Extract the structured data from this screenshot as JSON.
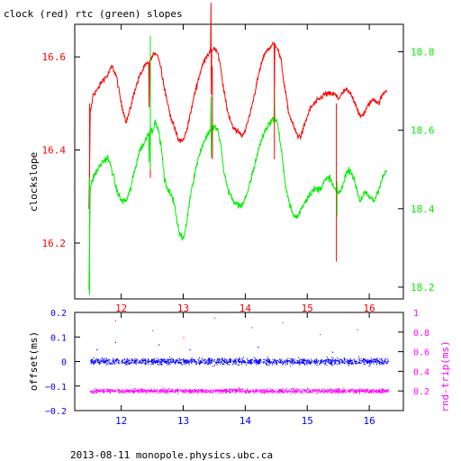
{
  "title": "clock (red) rtc (green) slopes",
  "footer": "2013-08-11 monopole.physics.ubc.ca",
  "colors": {
    "clock": "#ff0000",
    "rtc": "#00ee00",
    "offset": "#0000ff",
    "roundtrip": "#ff00ff",
    "axis": "#000000",
    "background": "#ffffff"
  },
  "chart_data": [
    {
      "type": "line",
      "title": "clock (red) rtc (green) slopes",
      "ylabel": "clockslope",
      "y2label": "",
      "xlim": [
        11.25,
        16.55
      ],
      "ylim": [
        16.08,
        16.67
      ],
      "y2lim": [
        18.17,
        18.87
      ],
      "x_ticks": [
        12,
        13,
        14,
        15,
        16
      ],
      "x_tick_labels": [
        "12",
        "13",
        "14",
        "15",
        "16"
      ],
      "y_ticks": [
        16.2,
        16.4,
        16.6
      ],
      "y_tick_labels": [
        "16.2",
        "16.4",
        "16.6"
      ],
      "y2_ticks": [
        18.2,
        18.4,
        18.6,
        18.8
      ],
      "y2_tick_labels": [
        "18.2",
        "18.4",
        "18.6",
        "18.8"
      ],
      "grid": false,
      "series": [
        {
          "name": "clock",
          "axis": "left",
          "x": [
            11.48,
            11.5,
            11.55,
            11.62,
            11.7,
            11.78,
            11.85,
            11.92,
            12.0,
            12.08,
            12.15,
            12.22,
            12.3,
            12.38,
            12.45,
            12.5,
            12.55,
            12.6,
            12.65,
            12.7,
            12.78,
            12.85,
            12.93,
            13.0,
            13.05,
            13.12,
            13.2,
            13.28,
            13.36,
            13.43,
            13.5,
            13.55,
            13.6,
            13.65,
            13.72,
            13.8,
            13.88,
            13.95,
            14.02,
            14.1,
            14.18,
            14.25,
            14.32,
            14.4,
            14.47,
            14.52,
            14.58,
            14.63,
            14.7,
            14.78,
            14.85,
            14.9,
            14.97,
            15.05,
            15.12,
            15.2,
            15.28,
            15.36,
            15.44,
            15.5,
            15.56,
            15.62,
            15.7,
            15.78,
            15.85,
            15.92,
            16.0,
            16.08,
            16.15,
            16.22,
            16.28
          ],
          "y": [
            16.27,
            16.48,
            16.52,
            16.53,
            16.55,
            16.56,
            16.58,
            16.56,
            16.5,
            16.46,
            16.49,
            16.53,
            16.56,
            16.58,
            16.59,
            16.6,
            16.61,
            16.6,
            16.57,
            16.53,
            16.48,
            16.45,
            16.42,
            16.42,
            16.44,
            16.48,
            16.53,
            16.57,
            16.6,
            16.61,
            16.62,
            16.61,
            16.58,
            16.53,
            16.48,
            16.45,
            16.44,
            16.43,
            16.45,
            16.49,
            16.54,
            16.58,
            16.61,
            16.62,
            16.63,
            16.62,
            16.59,
            16.54,
            16.48,
            16.45,
            16.43,
            16.43,
            16.46,
            16.49,
            16.5,
            16.51,
            16.52,
            16.52,
            16.52,
            16.51,
            16.52,
            16.53,
            16.52,
            16.5,
            16.47,
            16.48,
            16.5,
            16.51,
            16.5,
            16.52,
            16.53
          ]
        },
        {
          "name": "rtc",
          "axis": "right",
          "x": [
            11.48,
            11.5,
            11.55,
            11.62,
            11.7,
            11.78,
            11.85,
            11.92,
            12.0,
            12.08,
            12.15,
            12.22,
            12.3,
            12.38,
            12.45,
            12.5,
            12.55,
            12.6,
            12.65,
            12.7,
            12.78,
            12.85,
            12.93,
            13.0,
            13.05,
            13.12,
            13.2,
            13.28,
            13.36,
            13.43,
            13.5,
            13.55,
            13.6,
            13.65,
            13.72,
            13.8,
            13.88,
            13.95,
            14.02,
            14.1,
            14.18,
            14.25,
            14.32,
            14.4,
            14.47,
            14.52,
            14.58,
            14.63,
            14.7,
            14.78,
            14.85,
            14.9,
            14.97,
            15.05,
            15.12,
            15.2,
            15.28,
            15.36,
            15.44,
            15.5,
            15.56,
            15.62,
            15.7,
            15.78,
            15.85,
            15.92,
            16.0,
            16.08,
            16.15,
            16.22,
            16.28
          ],
          "y": [
            18.2,
            18.45,
            18.48,
            18.5,
            18.52,
            18.53,
            18.5,
            18.45,
            18.42,
            18.42,
            18.45,
            18.5,
            18.55,
            18.57,
            18.6,
            18.6,
            18.62,
            18.6,
            18.55,
            18.47,
            18.44,
            18.42,
            18.34,
            18.32,
            18.36,
            18.44,
            18.5,
            18.55,
            18.58,
            18.6,
            18.61,
            18.6,
            18.57,
            18.5,
            18.45,
            18.42,
            18.41,
            18.41,
            18.43,
            18.48,
            18.53,
            18.57,
            18.6,
            18.62,
            18.63,
            18.62,
            18.55,
            18.48,
            18.42,
            18.38,
            18.38,
            18.4,
            18.42,
            18.44,
            18.45,
            18.45,
            18.47,
            18.48,
            18.45,
            18.44,
            18.45,
            18.49,
            18.5,
            18.46,
            18.42,
            18.44,
            18.43,
            18.42,
            18.45,
            18.48,
            18.5
          ]
        }
      ]
    },
    {
      "type": "scatter",
      "ylabel": "offset(ms)",
      "y2label": "rnd-trip(ms)",
      "xlim": [
        11.25,
        16.55
      ],
      "ylim": [
        -0.2,
        0.2
      ],
      "y2lim": [
        0,
        1
      ],
      "x_ticks": [
        12,
        13,
        14,
        15,
        16
      ],
      "x_tick_labels": [
        "12",
        "13",
        "14",
        "15",
        "16"
      ],
      "y_ticks": [
        -0.2,
        -0.1,
        0,
        0.1,
        0.2
      ],
      "y_tick_labels": [
        "−0.2",
        "−0.1",
        "0",
        "0.1",
        "0.2"
      ],
      "y2_ticks": [
        0.2,
        0.4,
        0.6,
        0.8,
        1
      ],
      "y2_tick_labels": [
        "0.2",
        "0.4",
        "0.6",
        "0.8",
        "1"
      ],
      "grid": false,
      "series": [
        {
          "name": "offset",
          "axis": "left",
          "x_range": [
            11.5,
            16.3
          ],
          "center": 0.0,
          "spread": 0.012,
          "outliers": [
            [
              11.6,
              0.05
            ],
            [
              11.9,
              0.08
            ],
            [
              12.6,
              0.07
            ],
            [
              13.1,
              0.05
            ],
            [
              14.2,
              0.06
            ],
            [
              15.4,
              0.04
            ]
          ]
        },
        {
          "name": "roundtrip",
          "axis": "right",
          "x_range": [
            11.5,
            16.3
          ],
          "center": 0.2,
          "spread": 0.02,
          "outliers": [
            [
              11.9,
              0.92
            ],
            [
              12.5,
              0.82
            ],
            [
              13.0,
              0.75
            ],
            [
              13.5,
              0.95
            ],
            [
              14.1,
              0.85
            ],
            [
              14.6,
              0.9
            ],
            [
              15.2,
              0.78
            ],
            [
              15.8,
              0.83
            ]
          ]
        }
      ]
    }
  ]
}
